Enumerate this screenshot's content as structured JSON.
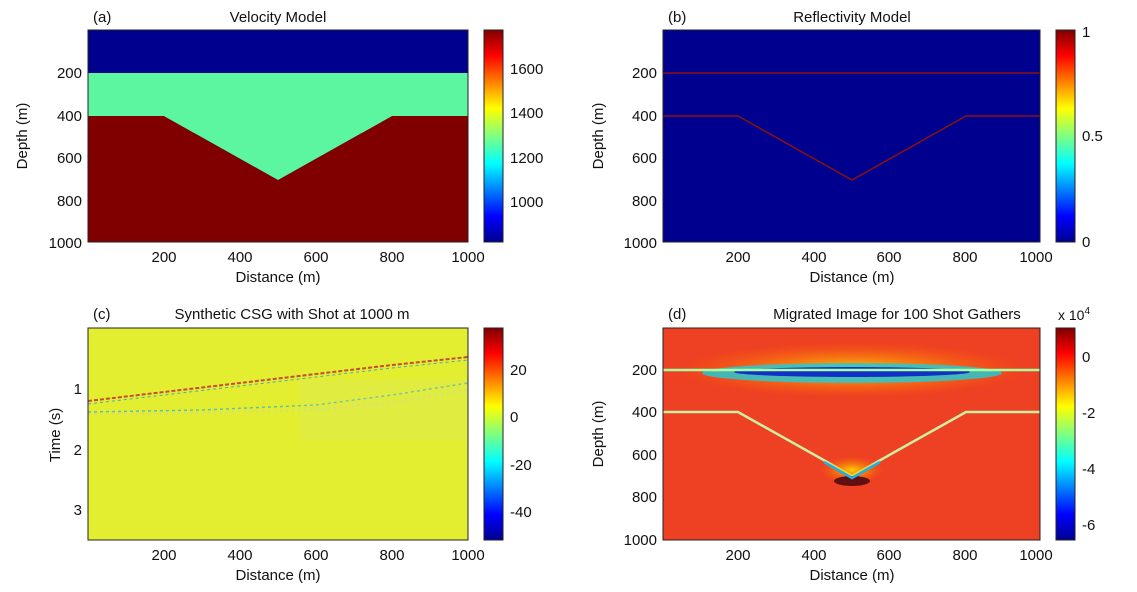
{
  "panels": [
    {
      "tag": "(a)",
      "title": "Velocity Model",
      "xlabel": "Distance (m)",
      "ylabel": "Depth (m)",
      "xticks": [
        "200",
        "400",
        "600",
        "800",
        "1000"
      ],
      "yticks": [
        "200",
        "400",
        "600",
        "800",
        "1000"
      ],
      "cbticks": [
        "1600",
        "1400",
        "1200",
        "1000"
      ]
    },
    {
      "tag": "(b)",
      "title": "Reflectivity Model",
      "xlabel": "Distance (m)",
      "ylabel": "Depth (m)",
      "xticks": [
        "200",
        "400",
        "600",
        "800",
        "1000"
      ],
      "yticks": [
        "200",
        "400",
        "600",
        "800",
        "1000"
      ],
      "cbticks": [
        "1",
        "0.5",
        "0"
      ]
    },
    {
      "tag": "(c)",
      "title": "Synthetic CSG with Shot at 1000 m",
      "xlabel": "Distance (m)",
      "ylabel": "Time (s)",
      "xticks": [
        "200",
        "400",
        "600",
        "800",
        "1000"
      ],
      "yticks": [
        "1",
        "2",
        "3"
      ],
      "cbticks": [
        "20",
        "0",
        "-20",
        "-40"
      ]
    },
    {
      "tag": "(d)",
      "title": "Migrated Image for 100 Shot Gathers",
      "xlabel": "Distance (m)",
      "ylabel": "Depth (m)",
      "xticks": [
        "200",
        "400",
        "600",
        "800",
        "1000"
      ],
      "yticks": [
        "200",
        "400",
        "600",
        "800",
        "1000"
      ],
      "cbticks": [
        "0",
        "-2",
        "-4",
        "-6"
      ],
      "cb_exponent_base": "x 10",
      "cb_exponent_power": "4"
    }
  ],
  "chart_data": [
    {
      "type": "heatmap",
      "title": "Velocity Model",
      "xlabel": "Distance (m)",
      "ylabel": "Depth (m)",
      "xlim": [
        0,
        1000
      ],
      "ylim": [
        1000,
        0
      ],
      "colorbar": {
        "range": [
          800,
          1750
        ],
        "ticks": [
          1600,
          1400,
          1200,
          1000
        ]
      },
      "layers": [
        {
          "top_depth": 0,
          "base_depth": 200,
          "velocity": 800,
          "color": "#00008f"
        },
        {
          "top_depth": 200,
          "base_boundary": [
            [
              0,
              400
            ],
            [
              200,
              400
            ],
            [
              500,
              700
            ],
            [
              800,
              400
            ],
            [
              1000,
              400
            ]
          ],
          "velocity": 1300,
          "color": "#5cf5a0"
        },
        {
          "top_boundary": [
            [
              0,
              400
            ],
            [
              200,
              400
            ],
            [
              500,
              700
            ],
            [
              800,
              400
            ],
            [
              1000,
              400
            ]
          ],
          "base_depth": 1000,
          "velocity": 1750,
          "color": "#800000"
        }
      ]
    },
    {
      "type": "heatmap",
      "title": "Reflectivity Model",
      "xlabel": "Distance (m)",
      "ylabel": "Depth (m)",
      "xlim": [
        0,
        1000
      ],
      "ylim": [
        1000,
        0
      ],
      "colorbar": {
        "range": [
          0,
          1
        ],
        "ticks": [
          1,
          0.5,
          0
        ]
      },
      "background_value": 0,
      "reflectors": [
        {
          "points": [
            [
              0,
              200
            ],
            [
              1000,
              200
            ]
          ]
        },
        {
          "points": [
            [
              0,
              400
            ],
            [
              200,
              400
            ],
            [
              500,
              700
            ],
            [
              800,
              400
            ],
            [
              1000,
              400
            ]
          ]
        }
      ]
    },
    {
      "type": "heatmap",
      "title": "Synthetic CSG with Shot at 1000 m",
      "xlabel": "Distance (m)",
      "ylabel": "Time (s)",
      "xlim": [
        0,
        1000
      ],
      "ylim": [
        3.5,
        0
      ],
      "colorbar": {
        "range": [
          -52,
          38
        ],
        "ticks": [
          20,
          0,
          -20,
          -40
        ]
      },
      "background_value": 0,
      "events": [
        {
          "name_hidden": true,
          "points": [
            [
              0,
              1.18
            ],
            [
              200,
              1.05
            ],
            [
              400,
              0.9
            ],
            [
              600,
              0.75
            ],
            [
              800,
              0.6
            ],
            [
              1000,
              0.48
            ]
          ]
        },
        {
          "name_hidden": true,
          "points": [
            [
              0,
              1.42
            ],
            [
              300,
              1.38
            ],
            [
              600,
              1.25
            ],
            [
              1000,
              1.1
            ]
          ]
        }
      ]
    },
    {
      "type": "heatmap",
      "title": "Migrated Image for 100 Shot Gathers",
      "xlabel": "Distance (m)",
      "ylabel": "Depth (m)",
      "xlim": [
        0,
        1000
      ],
      "ylim": [
        1000,
        0
      ],
      "colorbar": {
        "range": [
          -65000,
          10000
        ],
        "ticks": [
          0,
          -20000,
          -40000,
          -60000
        ]
      },
      "background_value": -3000,
      "reflectors": [
        {
          "points": [
            [
              0,
              200
            ],
            [
              1000,
              200
            ]
          ]
        },
        {
          "points": [
            [
              0,
              400
            ],
            [
              200,
              400
            ],
            [
              500,
              700
            ],
            [
              800,
              400
            ],
            [
              1000,
              400
            ]
          ]
        }
      ]
    }
  ]
}
